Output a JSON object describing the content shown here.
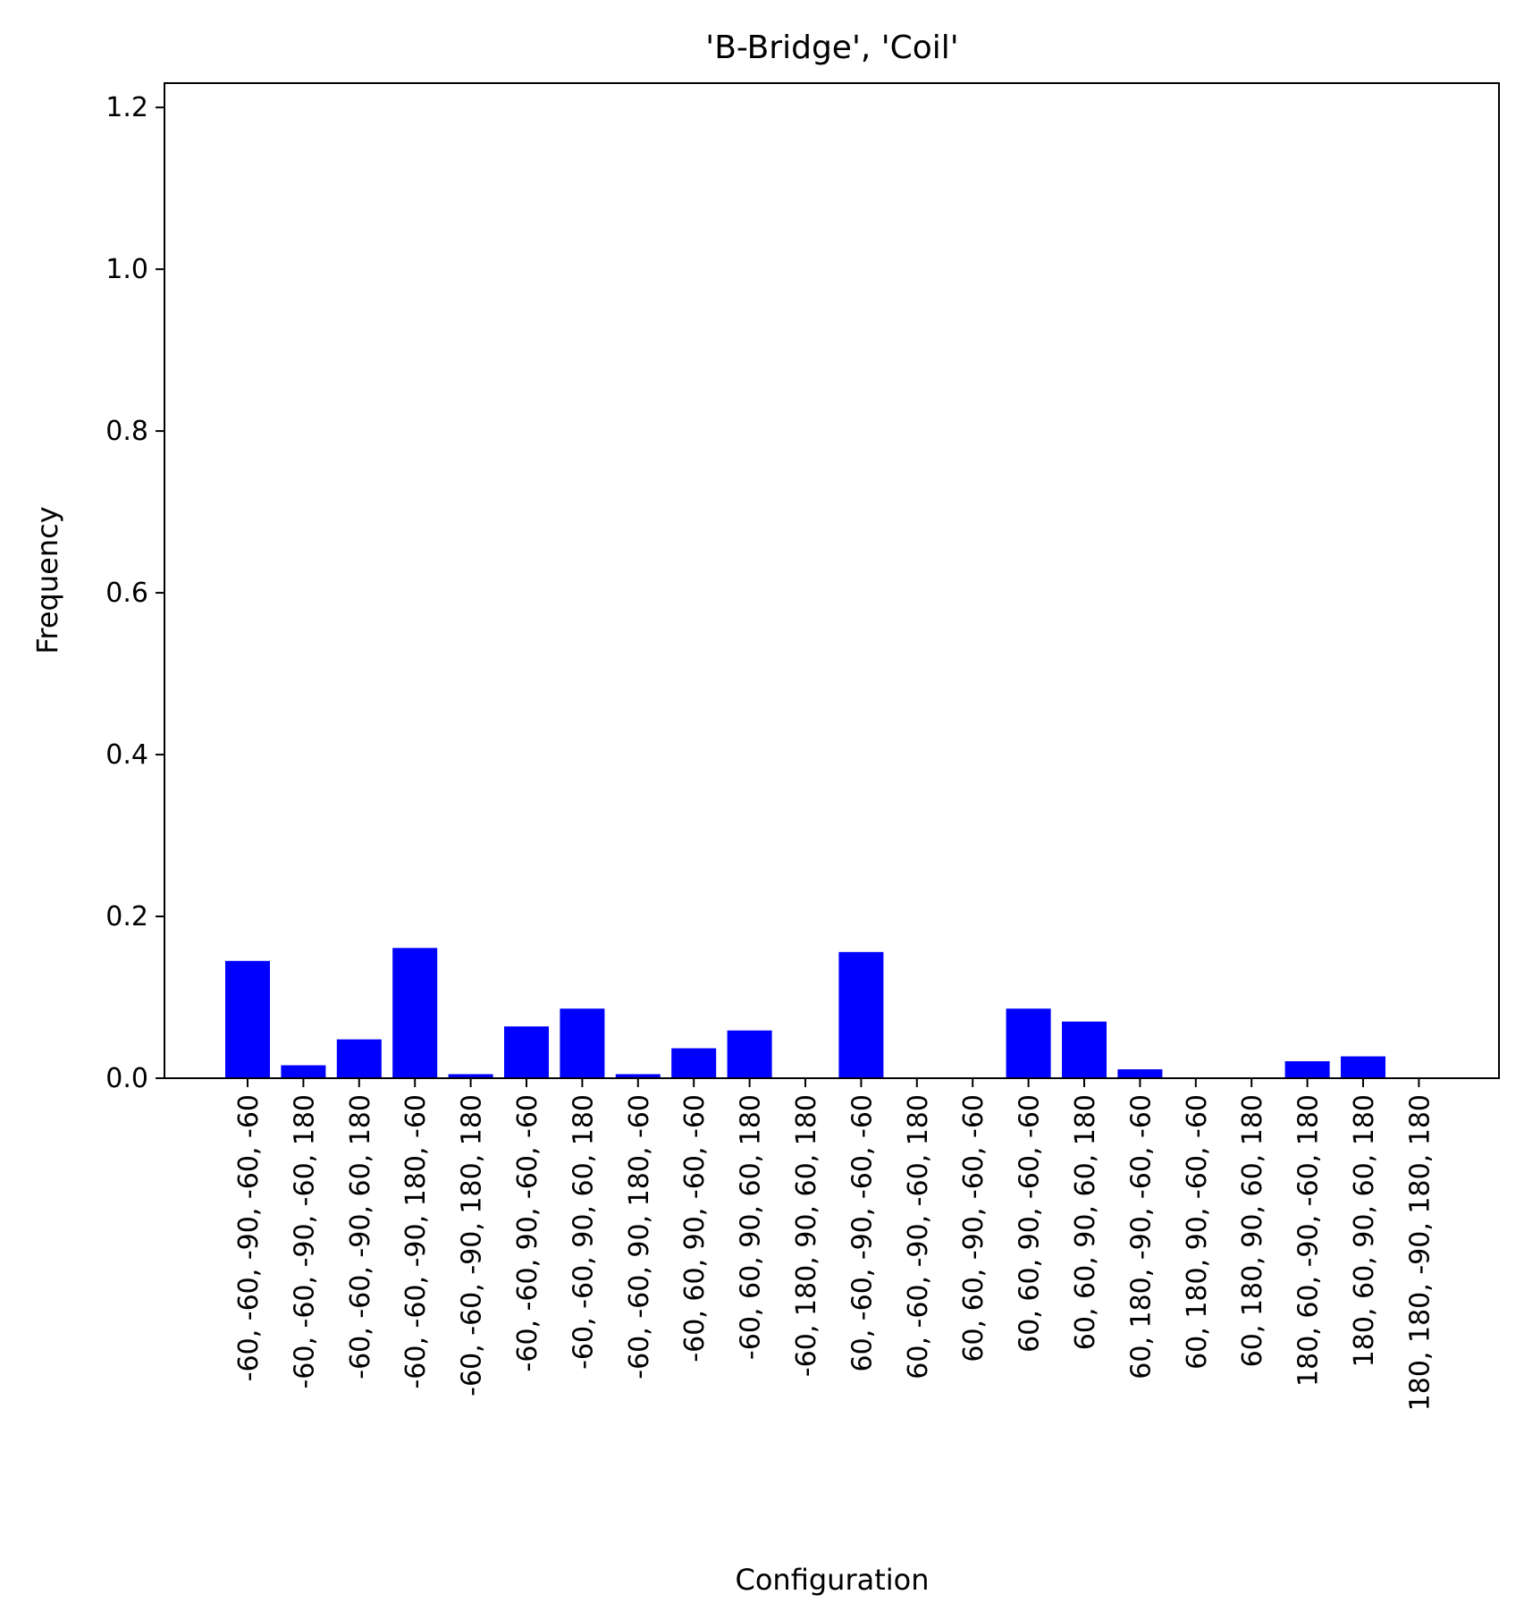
{
  "chart_data": {
    "type": "bar",
    "title": "'B-Bridge', 'Coil'",
    "xlabel": "Configuration",
    "ylabel": "Frequency",
    "ylim": [
      0,
      1.23
    ],
    "yticks": [
      "0.0",
      "0.2",
      "0.4",
      "0.6",
      "0.8",
      "1.0",
      "1.2"
    ],
    "bar_color": "#0000ff",
    "grid": false,
    "categories": [
      "-60, -60, -90, -60, -60",
      "-60, -60, -90, -60, 180",
      "-60, -60, -90, 60, 180",
      "-60, -60, -90, 180, -60",
      "-60, -60, -90, 180, 180",
      "-60, -60, 90, -60, -60",
      "-60, -60, 90, 60, 180",
      "-60, -60, 90, 180, -60",
      "-60, 60, 90, -60, -60",
      "-60, 60, 90, 60, 180",
      "-60, 180, 90, 60, 180",
      "60, -60, -90, -60, -60",
      "60, -60, -90, -60, 180",
      "60, 60, -90, -60, -60",
      "60, 60, 90, -60, -60",
      "60, 60, 90, 60, 180",
      "60, 180, -90, -60, -60",
      "60, 180, 90, -60, -60",
      "60, 180, 90, 60, 180",
      "180, 60, -90, -60, 180",
      "180, 60, 90, 60, 180",
      "180, 180, -90, 180, 180"
    ],
    "values": [
      0.145,
      0.016,
      0.048,
      0.161,
      0.005,
      0.064,
      0.086,
      0.005,
      0.037,
      0.059,
      0.0,
      0.156,
      0.0,
      0.0,
      0.086,
      0.07,
      0.011,
      0.0,
      0.0,
      0.021,
      0.027,
      0.0
    ]
  }
}
